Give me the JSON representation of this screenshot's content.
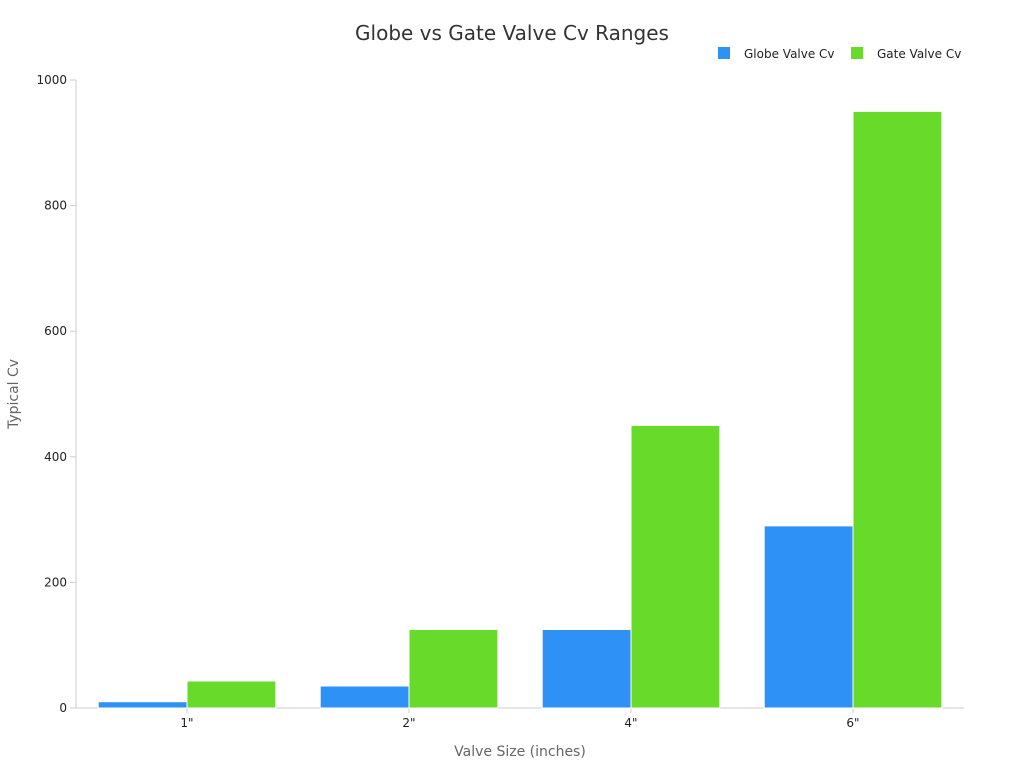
{
  "chart_data": {
    "type": "bar",
    "title": "Globe vs Gate Valve Cv Ranges",
    "xlabel": "Valve Size (inches)",
    "ylabel": "Typical Cv",
    "categories": [
      "1\"",
      "2\"",
      "4\"",
      "6\""
    ],
    "series": [
      {
        "name": "Globe Valve Cv",
        "values": [
          10,
          35,
          125,
          290
        ],
        "color": "#2e91f5"
      },
      {
        "name": "Gate Valve Cv",
        "values": [
          43,
          125,
          450,
          950
        ],
        "color": "#68da29"
      }
    ],
    "ylim": [
      0,
      1000
    ],
    "yticks": [
      0,
      200,
      400,
      600,
      800,
      1000
    ],
    "grid": false,
    "legend_position": "top-right"
  }
}
